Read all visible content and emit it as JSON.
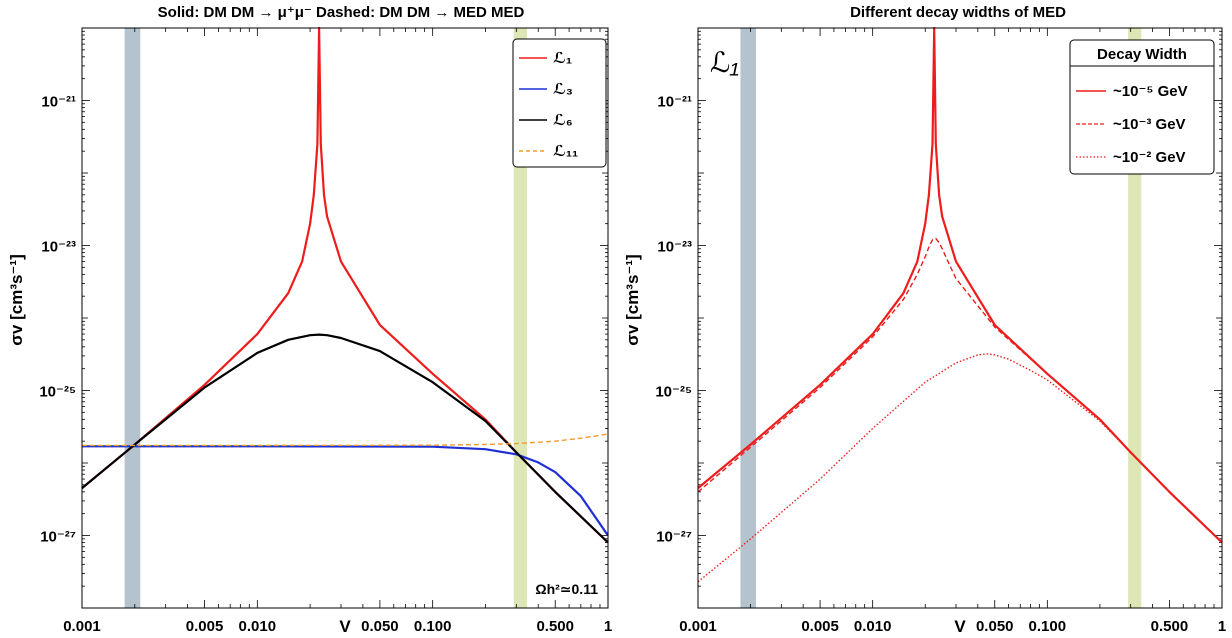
{
  "colors": {
    "red": "#ee1c1c",
    "blue": "#1f2fd6",
    "black": "#000000",
    "orange": "#f39c2a",
    "band_gray": "#b5c3cf",
    "band_green": "#dde7b5"
  },
  "chart_data": [
    {
      "type": "line",
      "title": "Solid: DM DM → μ⁺μ⁻    Dashed: DM DM → MED MED",
      "xlabel": "V",
      "ylabel": "σv  [cm³s⁻¹]",
      "xscale": "log",
      "yscale": "log",
      "xlim": [
        0.001,
        1
      ],
      "ylim": [
        1e-28,
        1e-20
      ],
      "xticks": [
        0.001,
        0.005,
        0.01,
        0.05,
        0.1,
        0.5,
        1
      ],
      "xtick_labels": [
        "0.001",
        "0.005",
        "0.010",
        "0.050",
        "0.100",
        "0.500",
        "1"
      ],
      "yticks": [
        1e-27,
        1e-25,
        1e-23,
        1e-21
      ],
      "ytick_labels": [
        "10⁻²⁷",
        "10⁻²⁵",
        "10⁻²³",
        "10⁻²¹"
      ],
      "bands": [
        {
          "x": [
            0.00175,
            0.00215
          ],
          "color": "#b5c3cf"
        },
        {
          "x": [
            0.29,
            0.345
          ],
          "color": "#dde7b5"
        }
      ],
      "annotation": "Ωh²≃0.11",
      "legend": {
        "position": "top-right"
      },
      "series": [
        {
          "name": "ℒ₁",
          "color": "#ee1c1c",
          "style": "solid",
          "x": [
            0.001,
            0.002,
            0.005,
            0.01,
            0.015,
            0.018,
            0.02,
            0.021,
            0.022,
            0.0225,
            0.023,
            0.024,
            0.025,
            0.03,
            0.05,
            0.1,
            0.2,
            0.3,
            0.5,
            1.0
          ],
          "y": [
            4.5e-27,
            1.8e-26,
            1.2e-25,
            6e-25,
            2.2e-24,
            6e-24,
            2e-23,
            5e-23,
            2.5e-22,
            1e-20,
            2.5e-22,
            5e-23,
            2.5e-23,
            6e-24,
            8e-25,
            1.7e-25,
            4e-26,
            1.4e-26,
            4e-27,
            8e-28
          ]
        },
        {
          "name": "ℒ₃",
          "color": "#1f2fd6",
          "style": "solid",
          "x": [
            0.001,
            0.01,
            0.1,
            0.2,
            0.3,
            0.4,
            0.5,
            0.7,
            1.0
          ],
          "y": [
            1.7e-26,
            1.7e-26,
            1.68e-26,
            1.55e-26,
            1.32e-26,
            1.02e-26,
            7.5e-27,
            3.5e-27,
            1e-27
          ]
        },
        {
          "name": "ℒ₆",
          "color": "#000000",
          "style": "solid",
          "x": [
            0.001,
            0.002,
            0.005,
            0.01,
            0.015,
            0.02,
            0.0225,
            0.025,
            0.03,
            0.05,
            0.1,
            0.2,
            0.3,
            0.5,
            1.0
          ],
          "y": [
            4.5e-27,
            1.8e-26,
            1.1e-25,
            3.3e-25,
            5e-25,
            5.8e-25,
            5.9e-25,
            5.8e-25,
            5.3e-25,
            3.5e-25,
            1.3e-25,
            3.8e-26,
            1.4e-26,
            4e-27,
            8e-28
          ]
        },
        {
          "name": "ℒ₁₁",
          "color": "#f39c2a",
          "style": "dashed",
          "x": [
            0.001,
            0.01,
            0.1,
            0.2,
            0.3,
            0.5,
            0.7,
            1.0
          ],
          "y": [
            1.75e-26,
            1.75e-26,
            1.76e-26,
            1.8e-26,
            1.85e-26,
            2e-26,
            2.2e-26,
            2.5e-26
          ]
        }
      ]
    },
    {
      "type": "line",
      "title": "Different decay widths of MED",
      "xlabel": "V",
      "ylabel": "σv  [cm³s⁻¹]",
      "xscale": "log",
      "yscale": "log",
      "xlim": [
        0.001,
        1
      ],
      "ylim": [
        1e-28,
        1e-20
      ],
      "xticks": [
        0.001,
        0.005,
        0.01,
        0.05,
        0.1,
        0.5,
        1
      ],
      "xtick_labels": [
        "0.001",
        "0.005",
        "0.010",
        "0.050",
        "0.100",
        "0.500",
        "1"
      ],
      "yticks": [
        1e-27,
        1e-25,
        1e-23,
        1e-21
      ],
      "ytick_labels": [
        "10⁻²⁷",
        "10⁻²⁵",
        "10⁻²³",
        "10⁻²¹"
      ],
      "bands": [
        {
          "x": [
            0.00175,
            0.00215
          ],
          "color": "#b5c3cf"
        },
        {
          "x": [
            0.29,
            0.345
          ],
          "color": "#dde7b5"
        }
      ],
      "annotation": "ℒ₁",
      "legend": {
        "position": "top-right",
        "title": "Decay Width"
      },
      "series": [
        {
          "name": "~10⁻⁵ GeV",
          "color": "#ee1c1c",
          "style": "solid",
          "x": [
            0.001,
            0.002,
            0.005,
            0.01,
            0.015,
            0.018,
            0.02,
            0.021,
            0.022,
            0.0225,
            0.023,
            0.024,
            0.025,
            0.03,
            0.05,
            0.1,
            0.2,
            0.3,
            0.5,
            1.0
          ],
          "y": [
            4.5e-27,
            1.8e-26,
            1.2e-25,
            6e-25,
            2.2e-24,
            6e-24,
            2e-23,
            5e-23,
            2.5e-22,
            1e-20,
            2.5e-22,
            5e-23,
            2.5e-23,
            6e-24,
            8e-25,
            1.7e-25,
            4e-26,
            1.4e-26,
            4e-27,
            8e-28
          ]
        },
        {
          "name": "~10⁻³ GeV",
          "color": "#ee1c1c",
          "style": "dashed",
          "x": [
            0.001,
            0.002,
            0.005,
            0.01,
            0.015,
            0.018,
            0.02,
            0.021,
            0.022,
            0.023,
            0.024,
            0.025,
            0.027,
            0.03,
            0.05,
            0.1,
            0.2,
            0.3,
            0.5,
            1.0
          ],
          "y": [
            4e-27,
            1.65e-26,
            1.1e-25,
            5.5e-25,
            1.8e-24,
            4e-24,
            7e-24,
            9.5e-24,
            1.2e-23,
            1.25e-23,
            1.1e-23,
            9e-24,
            6e-24,
            3.5e-24,
            7.5e-25,
            1.7e-25,
            4e-26,
            1.4e-26,
            4e-27,
            8e-28
          ]
        },
        {
          "name": "~10⁻² GeV",
          "color": "#ee1c1c",
          "style": "dotted",
          "x": [
            0.001,
            0.002,
            0.005,
            0.01,
            0.02,
            0.03,
            0.04,
            0.045,
            0.05,
            0.06,
            0.08,
            0.1,
            0.2,
            0.3,
            0.5,
            1.0
          ],
          "y": [
            2.3e-28,
            9e-28,
            6e-27,
            3e-26,
            1.3e-25,
            2.4e-25,
            3.1e-25,
            3.2e-25,
            3.1e-25,
            2.7e-25,
            1.9e-25,
            1.4e-25,
            3.8e-26,
            1.4e-26,
            4e-27,
            8e-28
          ]
        }
      ]
    }
  ]
}
